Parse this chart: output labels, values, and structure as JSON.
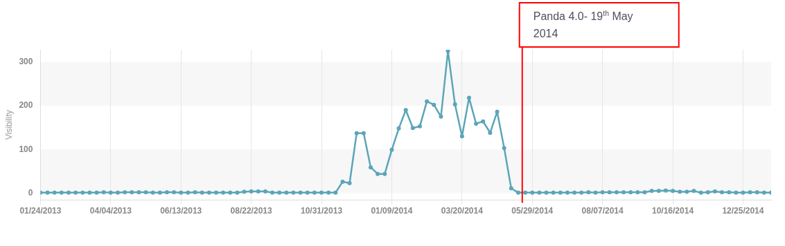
{
  "chart_data": {
    "type": "line",
    "ylabel": "Visibility",
    "x": [
      "2013-01-24",
      "2013-01-31",
      "2013-02-07",
      "2013-02-14",
      "2013-02-21",
      "2013-02-28",
      "2013-03-07",
      "2013-03-14",
      "2013-03-21",
      "2013-03-28",
      "2013-04-04",
      "2013-04-11",
      "2013-04-18",
      "2013-04-25",
      "2013-05-02",
      "2013-05-09",
      "2013-05-16",
      "2013-05-23",
      "2013-05-30",
      "2013-06-06",
      "2013-06-13",
      "2013-06-20",
      "2013-06-27",
      "2013-07-04",
      "2013-07-11",
      "2013-07-18",
      "2013-07-25",
      "2013-08-01",
      "2013-08-08",
      "2013-08-15",
      "2013-08-22",
      "2013-08-29",
      "2013-09-05",
      "2013-09-12",
      "2013-09-19",
      "2013-09-26",
      "2013-10-03",
      "2013-10-10",
      "2013-10-17",
      "2013-10-24",
      "2013-10-31",
      "2013-11-07",
      "2013-11-14",
      "2013-11-21",
      "2013-11-28",
      "2013-12-05",
      "2013-12-12",
      "2013-12-19",
      "2013-12-26",
      "2014-01-02",
      "2014-01-09",
      "2014-01-16",
      "2014-01-23",
      "2014-01-30",
      "2014-02-06",
      "2014-02-13",
      "2014-02-20",
      "2014-02-27",
      "2014-03-06",
      "2014-03-13",
      "2014-03-20",
      "2014-03-27",
      "2014-04-03",
      "2014-04-10",
      "2014-04-17",
      "2014-04-24",
      "2014-05-01",
      "2014-05-08",
      "2014-05-15",
      "2014-05-22",
      "2014-05-29",
      "2014-06-05",
      "2014-06-12",
      "2014-06-19",
      "2014-06-26",
      "2014-07-03",
      "2014-07-10",
      "2014-07-17",
      "2014-07-24",
      "2014-07-31",
      "2014-08-07",
      "2014-08-14",
      "2014-08-21",
      "2014-08-28",
      "2014-09-04",
      "2014-09-11",
      "2014-09-18",
      "2014-09-25",
      "2014-10-02",
      "2014-10-09",
      "2014-10-16",
      "2014-10-23",
      "2014-10-30",
      "2014-11-06",
      "2014-11-13",
      "2014-11-20",
      "2014-11-27",
      "2014-12-04",
      "2014-12-11",
      "2014-12-18",
      "2014-12-25",
      "2015-01-01",
      "2015-01-08",
      "2015-01-15",
      "2015-01-22"
    ],
    "series": [
      {
        "color": "#5ba5b8",
        "values": [
          1,
          1,
          1,
          1,
          1,
          1,
          1,
          1,
          1,
          2,
          1,
          1,
          2,
          2,
          2,
          2,
          1,
          1,
          2,
          2,
          1,
          1,
          2,
          1,
          1,
          1,
          1,
          1,
          1,
          3,
          4,
          4,
          4,
          1,
          1,
          1,
          1,
          1,
          1,
          1,
          1,
          1,
          1,
          26,
          23,
          137,
          137,
          59,
          44,
          44,
          99,
          148,
          190,
          149,
          153,
          210,
          202,
          175,
          325,
          203,
          130,
          218,
          159,
          164,
          138,
          186,
          103,
          11,
          1,
          1,
          1,
          1,
          1,
          1,
          1,
          1,
          1,
          1,
          2,
          1,
          2,
          2,
          2,
          2,
          2,
          2,
          2,
          5,
          5,
          6,
          5,
          3,
          3,
          5,
          1,
          2,
          4,
          2,
          2,
          1,
          1,
          2,
          2,
          1,
          1
        ]
      }
    ],
    "xlim": [
      "2013-01-24",
      "2015-01-22"
    ],
    "xticks": [
      {
        "value": "2013-01-24",
        "label": "01/24/2013"
      },
      {
        "value": "2013-04-04",
        "label": "04/04/2013"
      },
      {
        "value": "2013-06-13",
        "label": "06/13/2013"
      },
      {
        "value": "2013-08-22",
        "label": "08/22/2013"
      },
      {
        "value": "2013-10-31",
        "label": "10/31/2013"
      },
      {
        "value": "2014-01-09",
        "label": "01/09/2014"
      },
      {
        "value": "2014-03-20",
        "label": "03/20/2014"
      },
      {
        "value": "2014-05-29",
        "label": "05/29/2014"
      },
      {
        "value": "2014-08-07",
        "label": "08/07/2014"
      },
      {
        "value": "2014-10-16",
        "label": "10/16/2014"
      },
      {
        "value": "2014-12-25",
        "label": "12/25/2014"
      }
    ],
    "ylim": [
      -16,
      328
    ],
    "yticks": [
      0,
      100,
      200,
      300
    ],
    "grid": true,
    "legend": false,
    "marker": "circle",
    "line_style": "solid",
    "ref_lines": [
      {
        "axis": "x",
        "value": "2014-05-19",
        "label": "Panda 4.0- 19$^{th}$ May 2014",
        "color": "#ff0000"
      }
    ]
  }
}
